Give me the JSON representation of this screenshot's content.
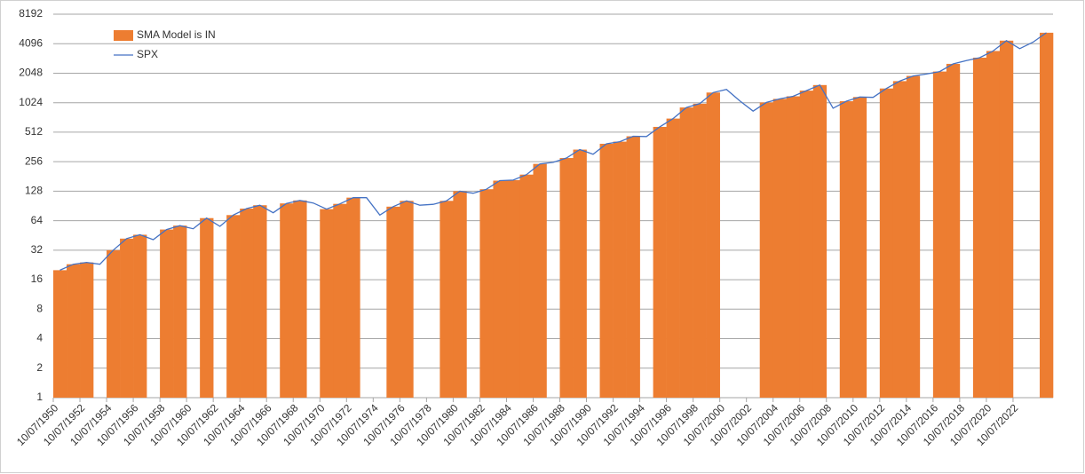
{
  "chart_data": {
    "type": "combo",
    "log_scale": true,
    "grid": true,
    "legend": "upper-left",
    "ylim": [
      1,
      8192
    ],
    "yticks": [
      1,
      2,
      4,
      8,
      16,
      32,
      64,
      128,
      256,
      512,
      1024,
      2048,
      4096,
      8192
    ],
    "x": [
      "10/07/1950",
      null,
      "10/07/1952",
      null,
      "10/07/1954",
      null,
      "10/07/1956",
      null,
      "10/07/1958",
      null,
      "10/07/1960",
      null,
      "10/07/1962",
      null,
      "10/07/1964",
      null,
      "10/07/1966",
      null,
      "10/07/1968",
      null,
      "10/07/1970",
      null,
      "10/07/1972",
      null,
      "10/07/1974",
      null,
      "10/07/1976",
      null,
      "10/07/1978",
      null,
      "10/07/1980",
      null,
      "10/07/1982",
      null,
      "10/07/1984",
      null,
      "10/07/1986",
      null,
      "10/07/1988",
      null,
      "10/07/1990",
      null,
      "10/07/1992",
      null,
      "10/07/1994",
      null,
      "10/07/1996",
      null,
      "10/07/1998",
      null,
      "10/07/2000",
      null,
      "10/07/2002",
      null,
      "10/07/2004",
      null,
      "10/07/2006",
      null,
      "10/07/2008",
      null,
      "10/07/2010",
      null,
      "10/07/2012",
      null,
      "10/07/2014",
      null,
      "10/07/2016",
      null,
      "10/07/2018",
      null,
      "10/07/2020",
      null,
      "10/07/2022",
      null,
      null
    ],
    "series": [
      {
        "name": "SMA Model is IN",
        "type": "bar",
        "color": "#ed7d31",
        "values": [
          20,
          23,
          24,
          null,
          32,
          42,
          46,
          null,
          52,
          57,
          null,
          68,
          null,
          73,
          85,
          92,
          null,
          96,
          103,
          null,
          84,
          95,
          110,
          null,
          null,
          89,
          102,
          null,
          null,
          102,
          128,
          null,
          134,
          164,
          166,
          189,
          243,
          null,
          279,
          340,
          null,
          390,
          410,
          465,
          null,
          580,
          705,
          915,
          1000,
          1300,
          null,
          null,
          null,
          1030,
          1120,
          1190,
          1360,
          1550,
          null,
          1060,
          1170,
          null,
          1430,
          1700,
          1920,
          null,
          2130,
          2550,
          null,
          2950,
          3450,
          4400,
          null,
          null,
          5300
        ]
      },
      {
        "name": "SPX",
        "type": "line",
        "color": "#4472c4",
        "values": [
          20,
          23,
          24,
          23,
          32,
          42,
          46,
          41,
          52,
          57,
          53,
          68,
          56,
          73,
          85,
          92,
          77,
          96,
          103,
          97,
          84,
          95,
          110,
          110,
          73,
          89,
          102,
          92,
          94,
          102,
          128,
          122,
          134,
          164,
          166,
          189,
          243,
          252,
          279,
          340,
          305,
          390,
          410,
          465,
          462,
          580,
          705,
          915,
          1000,
          1300,
          1400,
          1070,
          840,
          1030,
          1120,
          1190,
          1360,
          1550,
          900,
          1060,
          1170,
          1160,
          1430,
          1700,
          1920,
          2010,
          2130,
          2550,
          2750,
          2950,
          3450,
          4400,
          3650,
          4250,
          5300
        ]
      }
    ]
  }
}
